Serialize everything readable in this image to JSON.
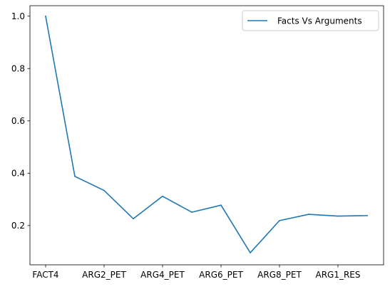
{
  "chart_data": {
    "type": "line",
    "title": "",
    "xlabel": "",
    "ylabel": "",
    "ylim": [
      0.05,
      1.04
    ],
    "x": [
      "FACT4",
      "",
      "ARG2_PET",
      "",
      "ARG4_PET",
      "",
      "ARG6_PET",
      "",
      "ARG8_PET",
      "",
      "ARG1_RES",
      ""
    ],
    "x_tick_labels": [
      "FACT4",
      "ARG2_PET",
      "ARG4_PET",
      "ARG6_PET",
      "ARG8_PET",
      "ARG1_RES"
    ],
    "y_ticks": [
      "0.2",
      "0.4",
      "0.6",
      "0.8",
      "1.0"
    ],
    "series": [
      {
        "name": "Facts Vs Arguments",
        "color": "#1f77b4",
        "values": [
          1.0,
          0.388,
          0.334,
          0.226,
          0.312,
          0.251,
          0.278,
          0.096,
          0.219,
          0.243,
          0.236,
          0.238
        ]
      }
    ],
    "legend": "top-right",
    "grid": false
  }
}
